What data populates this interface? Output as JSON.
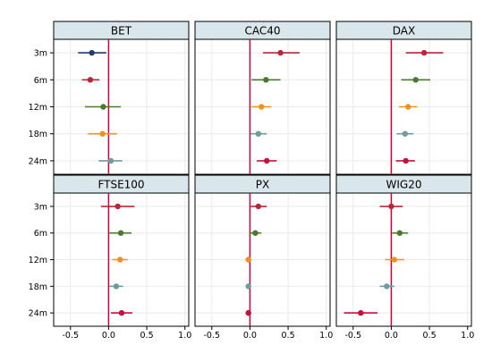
{
  "chart_data": {
    "type": "scatter",
    "subtype": "coefficient-plot-with-confidence-intervals",
    "grid": true,
    "panel_titles": [
      "BET",
      "CAC40",
      "DAX",
      "FTSE100",
      "PX",
      "WIG20"
    ],
    "y_categories": [
      "3m",
      "6m",
      "12m",
      "18m",
      "24m"
    ],
    "x_ticks": [
      "-0.5",
      "0.0",
      "0.5",
      "1.0"
    ],
    "xlim": [
      -0.72,
      1.05
    ],
    "series_colors": {
      "3m": "#b5283a",
      "6m": "#4a7a2d",
      "12m": "#f2901c",
      "18m": "#6f9c9c",
      "24m": "#c8103c"
    },
    "zero_line_color": "#c8003c",
    "panels": [
      {
        "title": "BET",
        "points": [
          {
            "term": "3m",
            "estimate": -0.22,
            "ci_low": -0.4,
            "ci_high": -0.03,
            "color": "#1f3d6b"
          },
          {
            "term": "6m",
            "estimate": -0.24,
            "ci_low": -0.35,
            "ci_high": -0.12,
            "color": "#b5283a"
          },
          {
            "term": "12m",
            "estimate": -0.07,
            "ci_low": -0.31,
            "ci_high": 0.16,
            "color": "#4a7a2d"
          },
          {
            "term": "18m",
            "estimate": -0.08,
            "ci_low": -0.27,
            "ci_high": 0.11,
            "color": "#f2901c"
          },
          {
            "term": "24m",
            "estimate": 0.03,
            "ci_low": -0.13,
            "ci_high": 0.18,
            "color": "#6f9c9c"
          }
        ]
      },
      {
        "title": "CAC40",
        "points": [
          {
            "term": "3m",
            "estimate": 0.4,
            "ci_low": 0.17,
            "ci_high": 0.65,
            "color": "#b5283a"
          },
          {
            "term": "6m",
            "estimate": 0.21,
            "ci_low": 0.02,
            "ci_high": 0.4,
            "color": "#4a7a2d"
          },
          {
            "term": "12m",
            "estimate": 0.15,
            "ci_low": 0.02,
            "ci_high": 0.28,
            "color": "#f2901c"
          },
          {
            "term": "18m",
            "estimate": 0.11,
            "ci_low": 0.01,
            "ci_high": 0.22,
            "color": "#6f9c9c"
          },
          {
            "term": "24m",
            "estimate": 0.22,
            "ci_low": 0.09,
            "ci_high": 0.35,
            "color": "#c8103c"
          }
        ]
      },
      {
        "title": "DAX",
        "points": [
          {
            "term": "3m",
            "estimate": 0.43,
            "ci_low": 0.19,
            "ci_high": 0.68,
            "color": "#b5283a"
          },
          {
            "term": "6m",
            "estimate": 0.32,
            "ci_low": 0.13,
            "ci_high": 0.51,
            "color": "#4a7a2d"
          },
          {
            "term": "12m",
            "estimate": 0.22,
            "ci_low": 0.1,
            "ci_high": 0.34,
            "color": "#f2901c"
          },
          {
            "term": "18m",
            "estimate": 0.18,
            "ci_low": 0.07,
            "ci_high": 0.29,
            "color": "#6f9c9c"
          },
          {
            "term": "24m",
            "estimate": 0.19,
            "ci_low": 0.06,
            "ci_high": 0.31,
            "color": "#c8103c"
          }
        ]
      },
      {
        "title": "FTSE100",
        "points": [
          {
            "term": "3m",
            "estimate": 0.12,
            "ci_low": -0.1,
            "ci_high": 0.34,
            "color": "#b5283a"
          },
          {
            "term": "6m",
            "estimate": 0.16,
            "ci_low": 0.01,
            "ci_high": 0.3,
            "color": "#4a7a2d"
          },
          {
            "term": "12m",
            "estimate": 0.15,
            "ci_low": 0.05,
            "ci_high": 0.25,
            "color": "#f2901c"
          },
          {
            "term": "18m",
            "estimate": 0.1,
            "ci_low": 0.01,
            "ci_high": 0.19,
            "color": "#6f9c9c"
          },
          {
            "term": "24m",
            "estimate": 0.17,
            "ci_low": 0.03,
            "ci_high": 0.31,
            "color": "#c8103c"
          }
        ]
      },
      {
        "title": "PX",
        "points": [
          {
            "term": "3m",
            "estimate": 0.11,
            "ci_low": 0.01,
            "ci_high": 0.22,
            "color": "#b5283a"
          },
          {
            "term": "6m",
            "estimate": 0.07,
            "ci_low": -0.01,
            "ci_high": 0.15,
            "color": "#4a7a2d"
          },
          {
            "term": "12m",
            "estimate": -0.02,
            "ci_low": -0.06,
            "ci_high": 0.02,
            "color": "#f2901c"
          },
          {
            "term": "18m",
            "estimate": -0.02,
            "ci_low": -0.05,
            "ci_high": 0.01,
            "color": "#6f9c9c"
          },
          {
            "term": "24m",
            "estimate": -0.02,
            "ci_low": -0.05,
            "ci_high": 0.01,
            "color": "#c8103c"
          }
        ]
      },
      {
        "title": "WIG20",
        "points": [
          {
            "term": "3m",
            "estimate": 0.0,
            "ci_low": -0.15,
            "ci_high": 0.15,
            "color": "#b5283a"
          },
          {
            "term": "6m",
            "estimate": 0.11,
            "ci_low": 0.01,
            "ci_high": 0.22,
            "color": "#4a7a2d"
          },
          {
            "term": "12m",
            "estimate": 0.04,
            "ci_low": -0.08,
            "ci_high": 0.17,
            "color": "#f2901c"
          },
          {
            "term": "18m",
            "estimate": -0.06,
            "ci_low": -0.15,
            "ci_high": 0.04,
            "color": "#6f9c9c"
          },
          {
            "term": "24m",
            "estimate": -0.4,
            "ci_low": -0.62,
            "ci_high": -0.18,
            "color": "#c8103c"
          }
        ]
      }
    ]
  }
}
